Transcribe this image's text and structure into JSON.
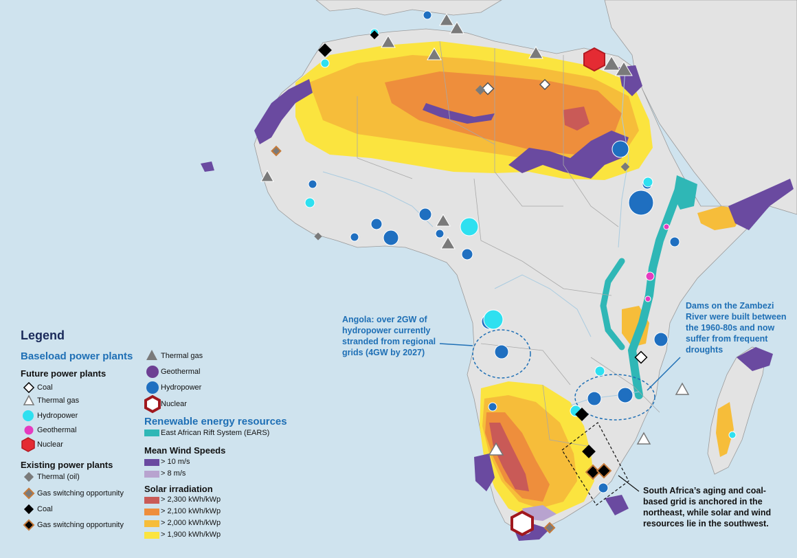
{
  "legend": {
    "title": "Legend",
    "baseload_title": "Baseload power plants",
    "future_title": "Future power plants",
    "future_items": {
      "coal": "Coal",
      "thermal_gas": "Thermal gas",
      "hydropower": "Hydropower",
      "geothermal": "Geothermal",
      "nuclear": "Nuclear"
    },
    "existing_title": "Existing power plants",
    "existing_items": {
      "thermal_oil": "Thermal (oil)",
      "gas_switching_1": "Gas switching opportunity",
      "coal": "Coal",
      "gas_switching_2": "Gas switching opportunity"
    },
    "right_column": {
      "thermal_gas": "Thermal gas",
      "geothermal": "Geothermal",
      "hydropower": "Hydropower",
      "nuclear": "Nuclear"
    },
    "renewable_title": "Renewable energy resources",
    "ears_label": "East African Rift System (EARS)",
    "wind_title": "Mean Wind Speeds",
    "wind_items": {
      "w10": "> 10 m/s",
      "w8": "> 8 m/s"
    },
    "solar_title": "Solar irradiation",
    "solar_items": {
      "s2300": "> 2,300 kWh/kWp",
      "s2100": "> 2,100 kWh/kWp",
      "s2000": "> 2,000 kWh/kWp",
      "s1900": "> 1,900 kWh/kWp"
    }
  },
  "annotations": {
    "angola": "Angola: over 2GW of hydropower currently stranded from regional grids (4GW by 2027)",
    "zambezi": "Dams on the Zambezi River were built between the 1960-80s and now suffer from frequent droughts",
    "south_africa": "South Africa’s aging and coal-based grid is anchored in the northeast, while solar and wind resources lie in the southwest."
  },
  "colors": {
    "sea": "#cfe3ee",
    "land": "#e3e3e3",
    "wind_10": "#6a4aa0",
    "wind_8": "#b8a3cf",
    "solar_2300": "#c95a57",
    "solar_2100": "#ee8e3c",
    "solar_2000": "#f6bd3a",
    "solar_1900": "#fbe43f",
    "ears": "#2fb7b6",
    "hydro_existing": "#1f6fc0",
    "hydro_future": "#2ee0f0",
    "geothermal_future": "#e53bbf",
    "geothermal_existing": "#6d3f93",
    "nuclear": "#e42b33",
    "thermal": "#7a7a7a",
    "gas_switch": "#c57a3a"
  },
  "icons": [
    "coal-diamond-icon",
    "thermal-gas-triangle-icon",
    "hydropower-circle-icon",
    "geothermal-circle-icon",
    "nuclear-hexagon-icon",
    "thermal-oil-diamond-icon",
    "gas-switching-diamond-icon"
  ]
}
